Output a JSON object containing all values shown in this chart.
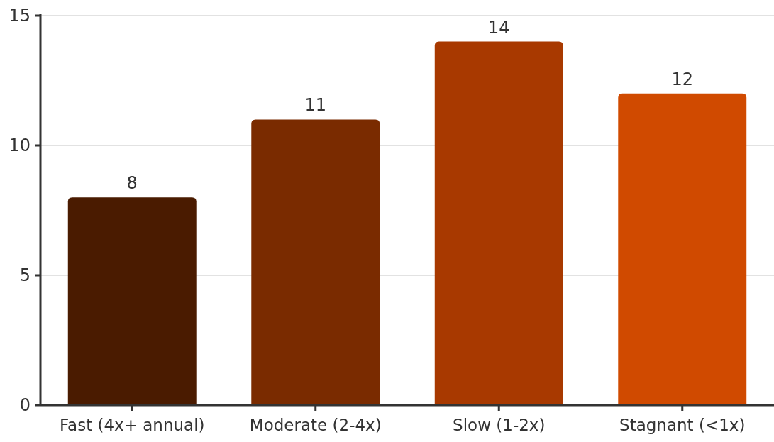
{
  "chart_data": {
    "type": "bar",
    "categories": [
      "Fast (4x+ annual)",
      "Moderate (2-4x)",
      "Slow (1-2x)",
      "Stagnant (<1x)"
    ],
    "values": [
      8,
      11,
      14,
      12
    ],
    "colors": [
      "#4a1b00",
      "#7a2b00",
      "#a83900",
      "#d04a00"
    ],
    "ylim": [
      0,
      15
    ],
    "yticks": [
      0,
      5,
      10,
      15
    ],
    "grid": "y",
    "data_labels": true
  }
}
